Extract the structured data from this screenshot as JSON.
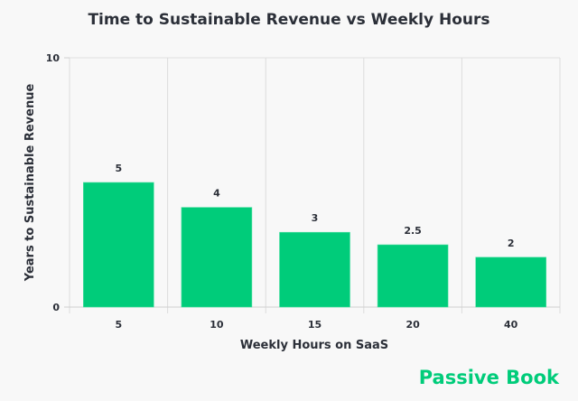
{
  "chart_data": {
    "type": "bar",
    "title": "Time to Sustainable Revenue vs Weekly Hours",
    "xlabel": "Weekly Hours on SaaS",
    "ylabel": "Years to Sustainable Revenue",
    "categories": [
      "5",
      "10",
      "15",
      "20",
      "40"
    ],
    "values": [
      5,
      4,
      3,
      2.5,
      2
    ],
    "data_labels": [
      "5",
      "4",
      "3",
      "2.5",
      "2"
    ],
    "ylim": [
      0,
      10
    ],
    "yticks": [
      "0",
      "10"
    ],
    "grid": true,
    "bar_color": "#00cc7a"
  },
  "brand": "Passive Book",
  "brand_color": "#00cc7a"
}
